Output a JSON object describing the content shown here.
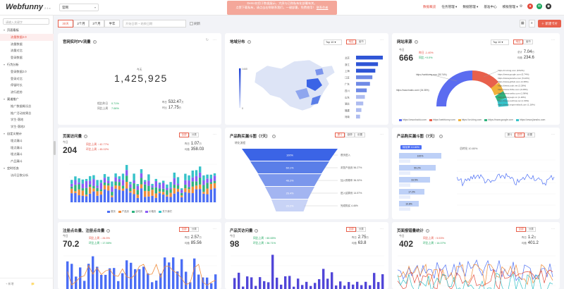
{
  "logo": "Webfunny",
  "version": "2.1.x",
  "project": "官网",
  "banner": [
    "Demo仅用于数据展示，大屏与已购私有化部署有关。",
    "点赞下载私有，请点击右侧联系我们，一键部署，免费使用！",
    "联系作者"
  ],
  "nav": [
    "数据概览",
    "任务管理 ▾",
    "数据管理 ▾",
    "基准中心",
    "模板管理 ▾"
  ],
  "top_icons": [
    "settings-icon",
    "user-icon",
    "wechat-icon",
    "github-icon"
  ],
  "sidebar": {
    "search_placeholder": "请输入关键字",
    "menu": [
      {
        "label": "页面看板",
        "items": [
          "流量数据2.0",
          "流量数据",
          "流量对比",
          "登录数据"
        ]
      },
      {
        "label": "行为分析",
        "items": [
          "登录数据2.0",
          "登录对比",
          "停留时长",
          "流行趋势"
        ]
      },
      {
        "label": "渠道推广",
        "items": [
          "推广数据概况总",
          "推广活动效果总",
          "学生-落地",
          "学生-落地2"
        ]
      },
      {
        "label": "自定义统计",
        "items": [
          "埋点漏斗",
          "埋点漏斗",
          "埋点漏斗",
          "产品漏斗"
        ]
      },
      {
        "label": "定时任务",
        "items": [
          "访问日数分析"
        ]
      }
    ],
    "active": "流量数据2.0",
    "footer_left": "+ 新增",
    "footer_right": "📁"
  },
  "toolbar": {
    "ranges": [
      "30天",
      "2个月",
      "3个月",
      "半年"
    ],
    "active": "30天",
    "date_start": "开始日期",
    "date_sep": "~",
    "date_end": "结束日期",
    "refresh": "刷新",
    "add_card": "新建卡片"
  },
  "cards": {
    "pv": {
      "title": "官网实时PV流量",
      "total_label": "今天",
      "big": "1,425,925",
      "left_labels": [
        "相比昨日",
        "同比上周"
      ],
      "left_values": [
        "0.71%",
        "7.06%"
      ],
      "right_rows": [
        {
          "label": "昨日",
          "value": "532.47",
          "unit": "万"
        },
        {
          "label": "环比",
          "value": "17.75",
          "unit": "万"
        }
      ]
    },
    "geo": {
      "title": "地域分布",
      "select": "Top 10",
      "tabs": [
        "地区",
        "省市"
      ],
      "scale_max": "1440",
      "scale_min": "0",
      "provinces": [
        "北京",
        "浙江",
        "上海",
        "江苏",
        "广东",
        "四川",
        "山东",
        "湖北",
        "福建",
        "河南"
      ],
      "values": [
        100,
        82,
        72,
        61,
        52,
        40,
        33,
        27,
        20,
        15
      ]
    },
    "source": {
      "title": "网站来源",
      "select": "Top 10",
      "tabs": [
        "地区",
        "省市"
      ],
      "today_label": "今日",
      "today": "666",
      "rate1": "昨日 -1.40%",
      "rate2": "同比 +0.0%",
      "r_label1": "总计",
      "r_val1": "7.04",
      "r_unit1": "万",
      "r_label2": "均值",
      "r_val2": "234.6",
      "labels_left": [
        "https://webfunny.com (39.74%)",
        "https://www.baidu.com/ (34.38%)"
      ],
      "labels_right": [
        "https://cn.bing.com (8.52%)",
        "https://www.google.com (5.74%)",
        "https://www.jianshu.com (5.22%)",
        "https://www.github.com (4.38%)",
        "https://www.csdn.net (3.28%)",
        "https://www.zhihu.com (3.08%)",
        "https://www.weibo.com (1.98%)",
        "https://www.juejin.cn (1.48%)",
        "https://www.oschina.net (1.30%)",
        "https://www.segmentfault.com (1.18%)"
      ],
      "legend": [
        "https://www.baidu.com",
        "https://webfunny.com",
        "https://cn.bing.com",
        "https://www.google.com",
        "https://www.jianshu.com"
      ]
    },
    "visits": {
      "title": "页面访问量",
      "tabs": [
        "全部",
        "分类"
      ],
      "today_label": "今日",
      "today": "204",
      "r1": "同比上周 ↑ 42.77%",
      "r2": "环比上周 ↓ 45.02%",
      "right1_label": "昨日",
      "right1": "1.07",
      "right1_unit": "万",
      "right2_label": "均值",
      "right2": "358.03",
      "legend": [
        "首页",
        "产品页",
        "活动页",
        "价格页",
        "关于我们"
      ]
    },
    "funnel": {
      "title": "产品购买漏斗图（7天）",
      "tabs": [
        "漏斗",
        "趋势",
        "设置"
      ],
      "hint": "转化流程",
      "steps": [
        "100%",
        "60.1%",
        "46.2%",
        "26.4%",
        "20.2%"
      ],
      "labels": [
        "首页进入",
        "浏览产品页 56.27%",
        "加入购物车 36.32%",
        "进入结算页 14.57%",
        "完成购买 4.46%"
      ]
    },
    "funnel2": {
      "title": "产品购买漏斗图（7天）",
      "tabs": [
        "漏斗",
        "趋势",
        "设置"
      ],
      "badge": "转化率 10.80%",
      "trend_label": "总转化 10.80%",
      "steps": [
        "100%",
        "59.2%",
        "33.5%",
        "17.2%",
        "10.8%"
      ]
    },
    "stay": {
      "title": "注册点击量、注册点击量",
      "tabs": [
        "全部",
        "分类"
      ],
      "today_label": "今日",
      "today": "70.2",
      "r1": "同比上周 ↓ 26.5%",
      "r2": "环比上周 ↑ 17.55%",
      "right1_label": "昨日",
      "right1": "2.57",
      "right1_unit": "万",
      "right2_label": "均值",
      "right2": "85.56"
    },
    "product": {
      "title": "产品页访问量",
      "tabs": [
        "全部",
        "分类"
      ],
      "today_label": "今日",
      "today": "98",
      "r1": "同比上周 ↑ 60.65%",
      "r2": "环比上周 ↑ 36.71%",
      "right1_label": "昨日",
      "right1": "2.75",
      "right1_unit": "万",
      "right2_label": "均值",
      "right2": "63.8"
    },
    "errors": {
      "title": "页面报错量统计",
      "tabs": [
        "全部",
        "分类"
      ],
      "today_label": "今日",
      "today": "402",
      "r1": "同比上周 ↑ 5.53%",
      "r2": "环比上周 ↑ 14.07%",
      "right1_label": "昨日",
      "right1": "1.2",
      "right1_unit": "万",
      "right2_label": "均值",
      "right2": "401.2"
    }
  },
  "colors": {
    "accent": "#e8604c",
    "blue": "#4b6ef5",
    "orange": "#f08c3a",
    "green": "#2fb37e",
    "purple": "#8b5cf6",
    "teal": "#36c2c9",
    "red": "#e34d3f"
  }
}
